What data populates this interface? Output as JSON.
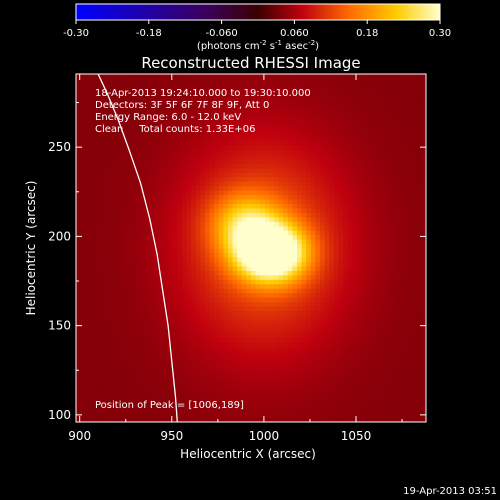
{
  "chart_data": {
    "type": "heatmap",
    "title": "Reconstructed RHESSI Image",
    "xlabel": "Heliocentric X (arcsec)",
    "ylabel": "Heliocentric Y (arcsec)",
    "xlim": [
      898,
      1088
    ],
    "ylim": [
      96,
      291
    ],
    "xticks": [
      900,
      950,
      1000,
      1050
    ],
    "yticks": [
      100,
      150,
      200,
      250
    ],
    "colorbar": {
      "range": [
        -0.3,
        0.3
      ],
      "ticks": [
        "-0.30",
        "-0.18",
        "-0.060",
        "0.060",
        "0.18",
        "0.30"
      ],
      "tick_values": [
        -0.3,
        -0.18,
        -0.06,
        0.06,
        0.18,
        0.3
      ],
      "unit_parts": [
        "(photons cm",
        "-2",
        " s",
        "-1",
        " asec",
        "-2",
        ")"
      ]
    },
    "info_lines": [
      "18-Apr-2013 19:24:10.000 to 19:30:10.000",
      "Detectors: 3F 5F 6F 7F 8F 9F, Att 0",
      "Energy Range: 6.0 - 12.0 keV",
      "Clean     Total counts: 1.33E+06"
    ],
    "peak_label": "Position of Peak = [1006,189]",
    "peak": [
      1006,
      189
    ],
    "sources": [
      {
        "x": 1004,
        "y": 191,
        "sx": 13,
        "sy": 11,
        "amp": 0.3
      },
      {
        "x": 990,
        "y": 207,
        "sx": 13,
        "sy": 12,
        "amp": 0.13
      },
      {
        "x": 1000,
        "y": 195,
        "sx": 32,
        "sy": 42,
        "amp": 0.1
      }
    ],
    "background_level": 0.04,
    "limb": [
      [
        910,
        291
      ],
      [
        915,
        280
      ],
      [
        921,
        265
      ],
      [
        927,
        248
      ],
      [
        933,
        230
      ],
      [
        938,
        210
      ],
      [
        942,
        190
      ],
      [
        945,
        170
      ],
      [
        948,
        150
      ],
      [
        950,
        130
      ],
      [
        952,
        110
      ],
      [
        953,
        96
      ]
    ]
  },
  "timestamp": "19-Apr-2013 03:51"
}
